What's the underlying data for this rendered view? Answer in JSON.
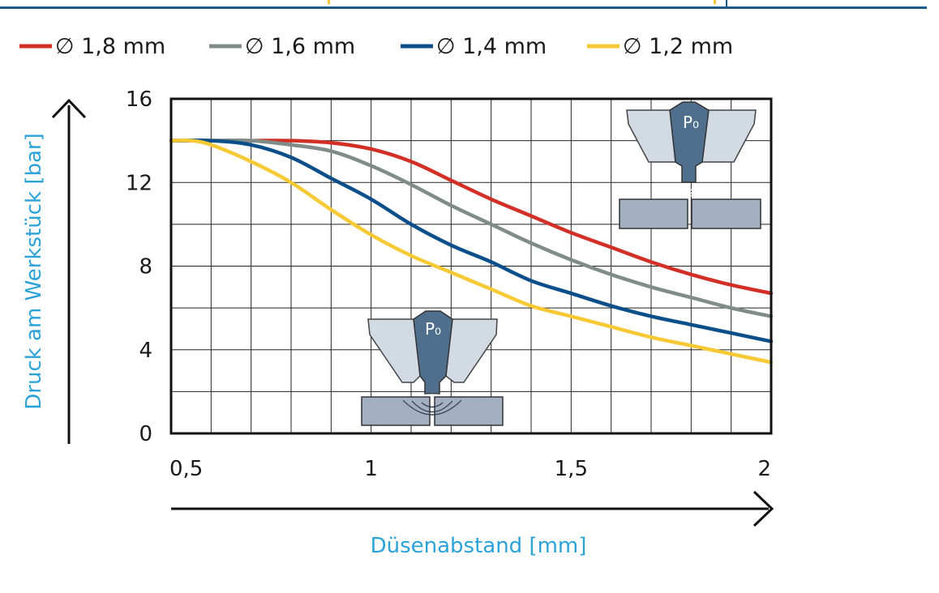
{
  "chart_data": {
    "type": "line",
    "xlabel": "Düsenabstand [mm]",
    "ylabel": "Druck am Werkstück [bar]",
    "xlim": [
      0.5,
      2.0
    ],
    "ylim": [
      0,
      16
    ],
    "x_ticks": [
      "0,5",
      "1",
      "1,5",
      "2"
    ],
    "y_ticks": [
      "0",
      "4",
      "8",
      "12",
      "16"
    ],
    "grid": true,
    "legend_position": "top",
    "series": [
      {
        "name": "∅ 1,8 mm",
        "color": "#d22f27",
        "points": [
          [
            0.5,
            14.0
          ],
          [
            0.6,
            14.0
          ],
          [
            0.7,
            14.0
          ],
          [
            0.8,
            14.0
          ],
          [
            0.9,
            13.9
          ],
          [
            1.0,
            13.6
          ],
          [
            1.1,
            13.0
          ],
          [
            1.2,
            12.1
          ],
          [
            1.3,
            11.2
          ],
          [
            1.4,
            10.4
          ],
          [
            1.5,
            9.6
          ],
          [
            1.6,
            8.9
          ],
          [
            1.7,
            8.2
          ],
          [
            1.8,
            7.6
          ],
          [
            1.9,
            7.1
          ],
          [
            2.0,
            6.7
          ]
        ]
      },
      {
        "name": "∅ 1,6 mm",
        "color": "#7f8c87",
        "points": [
          [
            0.5,
            14.0
          ],
          [
            0.6,
            14.0
          ],
          [
            0.7,
            14.0
          ],
          [
            0.8,
            13.8
          ],
          [
            0.9,
            13.5
          ],
          [
            1.0,
            12.8
          ],
          [
            1.1,
            11.9
          ],
          [
            1.2,
            10.9
          ],
          [
            1.3,
            10.0
          ],
          [
            1.4,
            9.1
          ],
          [
            1.5,
            8.3
          ],
          [
            1.6,
            7.6
          ],
          [
            1.7,
            7.0
          ],
          [
            1.8,
            6.5
          ],
          [
            1.9,
            6.0
          ],
          [
            2.0,
            5.6
          ]
        ]
      },
      {
        "name": "∅ 1,4 mm",
        "color": "#0b4f8a",
        "points": [
          [
            0.5,
            14.0
          ],
          [
            0.6,
            14.0
          ],
          [
            0.7,
            13.8
          ],
          [
            0.8,
            13.2
          ],
          [
            0.9,
            12.2
          ],
          [
            1.0,
            11.2
          ],
          [
            1.1,
            10.0
          ],
          [
            1.2,
            9.0
          ],
          [
            1.3,
            8.2
          ],
          [
            1.4,
            7.3
          ],
          [
            1.5,
            6.7
          ],
          [
            1.6,
            6.1
          ],
          [
            1.7,
            5.6
          ],
          [
            1.8,
            5.2
          ],
          [
            1.9,
            4.8
          ],
          [
            2.0,
            4.4
          ]
        ]
      },
      {
        "name": "∅ 1,2 mm",
        "color": "#f6c935",
        "points": [
          [
            0.5,
            14.0
          ],
          [
            0.55,
            14.0
          ],
          [
            0.6,
            13.8
          ],
          [
            0.7,
            13.0
          ],
          [
            0.8,
            12.0
          ],
          [
            0.9,
            10.7
          ],
          [
            1.0,
            9.5
          ],
          [
            1.1,
            8.5
          ],
          [
            1.2,
            7.7
          ],
          [
            1.3,
            6.9
          ],
          [
            1.4,
            6.1
          ],
          [
            1.5,
            5.6
          ],
          [
            1.6,
            5.1
          ],
          [
            1.7,
            4.6
          ],
          [
            1.8,
            4.2
          ],
          [
            1.9,
            3.8
          ],
          [
            2.0,
            3.4
          ]
        ]
      }
    ],
    "annotations": [
      "P₀",
      "P₀"
    ]
  },
  "colors": {
    "header_rule": "#1a5a8c",
    "axis_title": "#2ba2d8",
    "nozzle_light": "#d2dae3",
    "nozzle_dark": "#4f6f8d",
    "workpiece": "#a2b0c2"
  }
}
